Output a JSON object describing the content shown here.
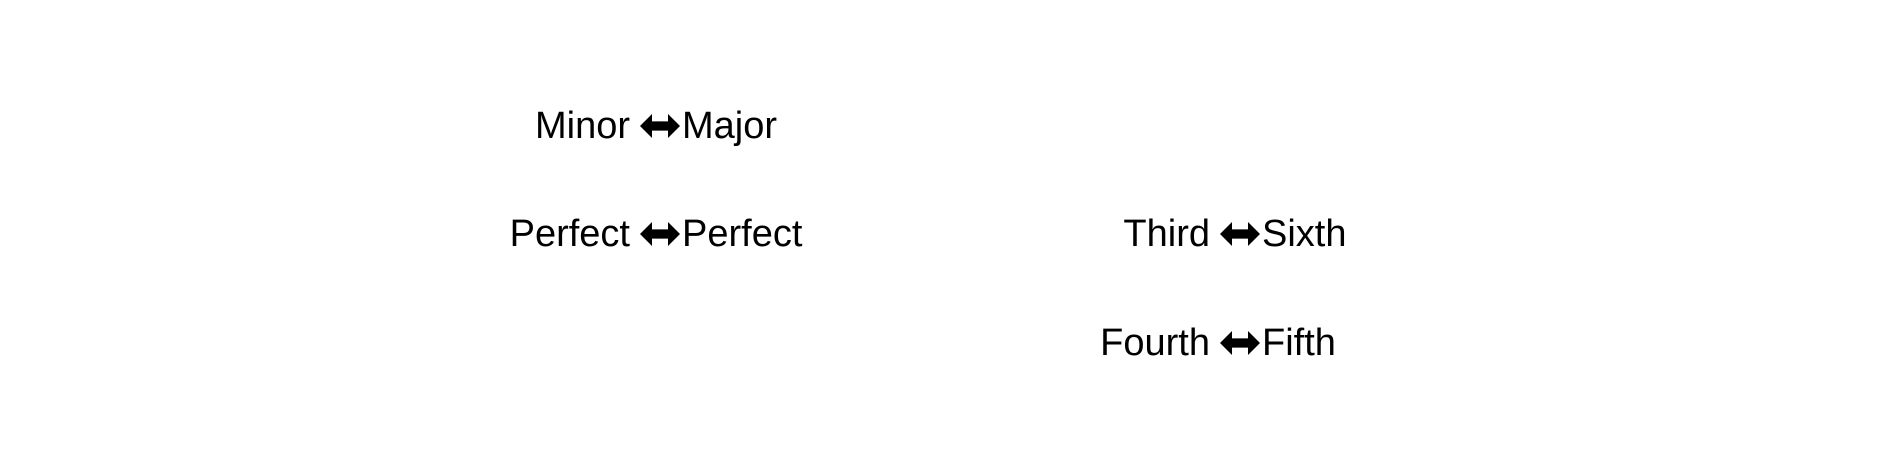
{
  "pairs": [
    {
      "left": "Minor",
      "right": "Major",
      "icon": "double-headed-arrow-icon"
    },
    {
      "left": "Perfect",
      "right": "Perfect",
      "icon": "double-headed-arrow-icon"
    },
    {
      "left": "Third",
      "right": "Sixth",
      "icon": "double-headed-arrow-icon"
    },
    {
      "left": "Fourth",
      "right": "Fifth",
      "icon": "double-headed-arrow-icon"
    }
  ],
  "colors": {
    "text": "#000000",
    "arrow": "#000000",
    "background": "#ffffff"
  }
}
